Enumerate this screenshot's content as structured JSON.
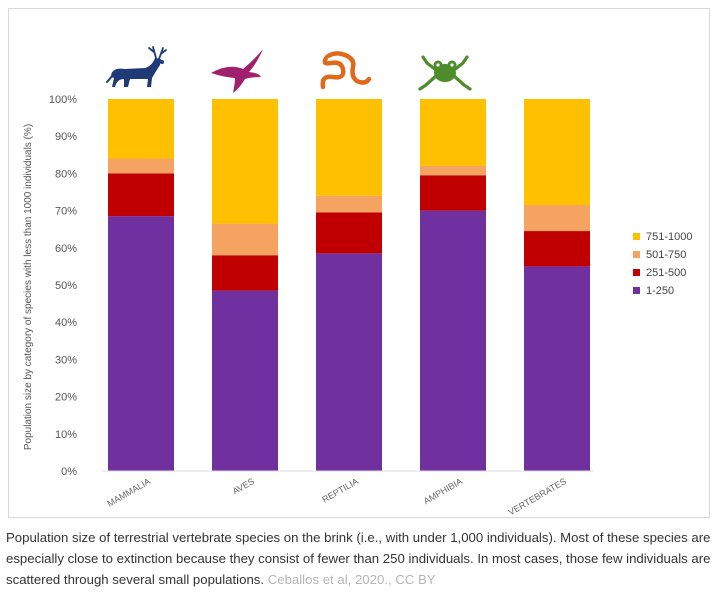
{
  "chart_data": {
    "type": "bar",
    "stacked": true,
    "ylabel": "Population size by category of species with less than 1000 individuals (%)",
    "ylim": [
      0,
      100
    ],
    "yticks": [
      "0%",
      "10%",
      "20%",
      "30%",
      "40%",
      "50%",
      "60%",
      "70%",
      "80%",
      "90%",
      "100%"
    ],
    "categories": [
      "MAMMALIA",
      "AVES",
      "REPTILIA",
      "AMPHIBIA",
      "VERTEBRATES"
    ],
    "series": [
      {
        "name": "1-250",
        "color": "#7030a0",
        "values": [
          68.5,
          48.5,
          58.5,
          70,
          55
        ]
      },
      {
        "name": "251-500",
        "color": "#c00000",
        "values": [
          11.5,
          9.5,
          11,
          9.5,
          9.5
        ]
      },
      {
        "name": "501-750",
        "color": "#f4a460",
        "values": [
          4,
          8.5,
          4.5,
          2.5,
          7
        ]
      },
      {
        "name": "751-1000",
        "color": "#ffc000",
        "values": [
          16,
          33.5,
          26,
          18,
          28.5
        ]
      }
    ],
    "legend_position": "right",
    "grid": false,
    "category_icons": [
      "deer-icon",
      "bird-icon",
      "snake-icon",
      "frog-icon",
      ""
    ],
    "icon_colors": [
      "#1f3a77",
      "#a0206e",
      "#e06a1b",
      "#4c8c2b",
      ""
    ]
  },
  "caption": {
    "text": "Population size of terrestrial vertebrate species on the brink (i.e., with under 1,000 individuals). Most of these species are especially close to extinction because they consist of fewer than 250 individuals. In most cases, those few individuals are scattered through several small populations.",
    "credit": "Ceballos et al, 2020., CC BY"
  }
}
